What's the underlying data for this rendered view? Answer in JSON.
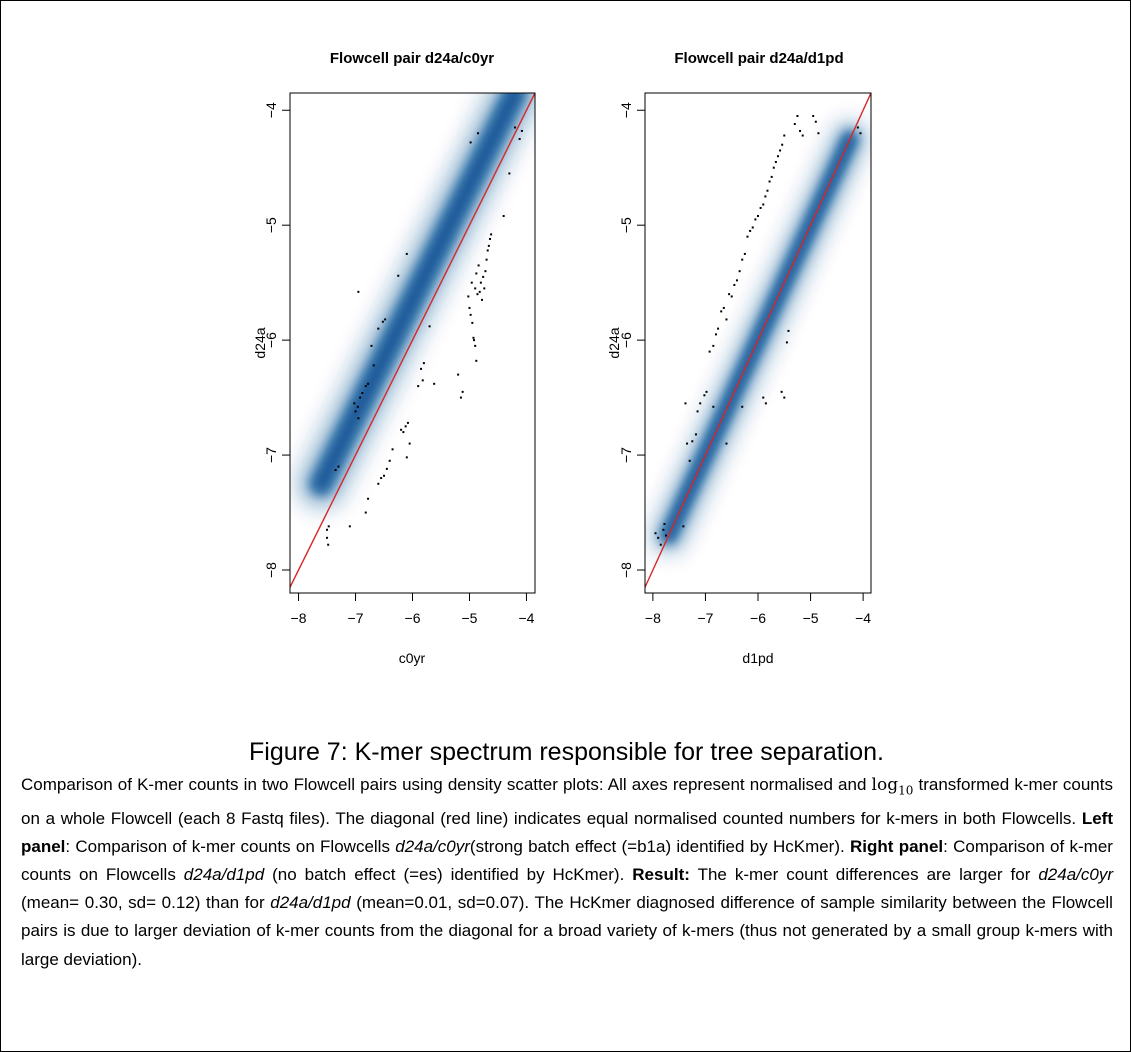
{
  "chart_data": [
    {
      "type": "scatter",
      "title": "Flowcell pair d24a/c0yr",
      "xlabel": "c0yr",
      "ylabel": "d24a",
      "xlim": [
        -8.15,
        -3.85
      ],
      "ylim": [
        -8.2,
        -3.85
      ],
      "x_ticks": [
        -8,
        -7,
        -6,
        -5,
        -4
      ],
      "y_ticks": [
        -8,
        -7,
        -6,
        -5,
        -4
      ],
      "density": {
        "color": "#0b4f94",
        "center_offset": 0.35,
        "spread": 0.22,
        "from": -7.6,
        "to": -4.2
      },
      "diagonal": {
        "color": "#d62728",
        "slope": 1,
        "intercept": 0
      },
      "points": [
        [
          -7.5,
          -7.65
        ],
        [
          -7.5,
          -7.72
        ],
        [
          -7.48,
          -7.78
        ],
        [
          -7.47,
          -7.62
        ],
        [
          -7.35,
          -7.13
        ],
        [
          -7.3,
          -7.1
        ],
        [
          -7.1,
          -7.62
        ],
        [
          -7.02,
          -6.55
        ],
        [
          -7.0,
          -6.62
        ],
        [
          -6.96,
          -6.58
        ],
        [
          -6.92,
          -6.5
        ],
        [
          -6.88,
          -6.46
        ],
        [
          -6.95,
          -6.68
        ],
        [
          -6.82,
          -6.4
        ],
        [
          -6.78,
          -6.38
        ],
        [
          -6.95,
          -5.58
        ],
        [
          -6.72,
          -6.05
        ],
        [
          -6.68,
          -6.22
        ],
        [
          -6.6,
          -5.9
        ],
        [
          -6.52,
          -5.84
        ],
        [
          -6.48,
          -5.82
        ],
        [
          -6.82,
          -7.5
        ],
        [
          -6.78,
          -7.38
        ],
        [
          -6.6,
          -7.25
        ],
        [
          -6.55,
          -7.2
        ],
        [
          -6.5,
          -7.18
        ],
        [
          -6.45,
          -7.12
        ],
        [
          -6.4,
          -7.05
        ],
        [
          -6.35,
          -6.95
        ],
        [
          -6.25,
          -5.44
        ],
        [
          -6.1,
          -5.25
        ],
        [
          -6.2,
          -6.78
        ],
        [
          -6.16,
          -6.8
        ],
        [
          -6.12,
          -6.75
        ],
        [
          -6.08,
          -6.72
        ],
        [
          -6.1,
          -7.02
        ],
        [
          -6.05,
          -6.9
        ],
        [
          -5.9,
          -6.4
        ],
        [
          -5.85,
          -6.25
        ],
        [
          -5.8,
          -6.2
        ],
        [
          -5.82,
          -6.35
        ],
        [
          -5.7,
          -5.88
        ],
        [
          -5.62,
          -6.38
        ],
        [
          -5.2,
          -6.3
        ],
        [
          -5.15,
          -6.5
        ],
        [
          -5.12,
          -6.45
        ],
        [
          -5.02,
          -5.62
        ],
        [
          -5.0,
          -5.72
        ],
        [
          -4.98,
          -5.78
        ],
        [
          -4.96,
          -5.5
        ],
        [
          -4.95,
          -5.85
        ],
        [
          -4.93,
          -5.98
        ],
        [
          -4.9,
          -5.55
        ],
        [
          -4.88,
          -5.42
        ],
        [
          -4.86,
          -5.6
        ],
        [
          -4.84,
          -5.35
        ],
        [
          -4.82,
          -5.58
        ],
        [
          -4.8,
          -5.5
        ],
        [
          -4.78,
          -5.65
        ],
        [
          -4.76,
          -5.45
        ],
        [
          -4.74,
          -5.55
        ],
        [
          -4.72,
          -5.4
        ],
        [
          -4.7,
          -5.3
        ],
        [
          -4.68,
          -5.22
        ],
        [
          -4.66,
          -5.18
        ],
        [
          -4.64,
          -5.12
        ],
        [
          -4.62,
          -5.08
        ],
        [
          -4.92,
          -6.0
        ],
        [
          -4.9,
          -6.05
        ],
        [
          -4.88,
          -6.18
        ],
        [
          -4.85,
          -4.2
        ],
        [
          -4.98,
          -4.28
        ],
        [
          -4.4,
          -4.92
        ],
        [
          -4.3,
          -4.55
        ],
        [
          -4.2,
          -4.15
        ],
        [
          -4.12,
          -4.25
        ],
        [
          -4.08,
          -4.18
        ]
      ]
    },
    {
      "type": "scatter",
      "title": "Flowcell pair d24a/d1pd",
      "xlabel": "d1pd",
      "ylabel": "d24a",
      "xlim": [
        -8.15,
        -3.85
      ],
      "ylim": [
        -8.2,
        -3.85
      ],
      "x_ticks": [
        -8,
        -7,
        -6,
        -5,
        -4
      ],
      "y_ticks": [
        -8,
        -7,
        -6,
        -5,
        -4
      ],
      "density": {
        "color": "#0b4f94",
        "center_offset": 0.0,
        "spread": 0.16,
        "from": -7.7,
        "to": -4.25
      },
      "diagonal": {
        "color": "#d62728",
        "slope": 1,
        "intercept": 0
      },
      "points": [
        [
          -7.95,
          -7.68
        ],
        [
          -7.9,
          -7.72
        ],
        [
          -7.85,
          -7.78
        ],
        [
          -7.8,
          -7.65
        ],
        [
          -7.78,
          -7.6
        ],
        [
          -7.75,
          -7.7
        ],
        [
          -7.42,
          -7.62
        ],
        [
          -7.38,
          -6.55
        ],
        [
          -7.35,
          -6.9
        ],
        [
          -7.3,
          -7.05
        ],
        [
          -7.25,
          -6.88
        ],
        [
          -7.18,
          -6.82
        ],
        [
          -7.15,
          -6.62
        ],
        [
          -7.1,
          -6.55
        ],
        [
          -7.02,
          -6.48
        ],
        [
          -6.98,
          -6.45
        ],
        [
          -6.92,
          -6.1
        ],
        [
          -6.85,
          -6.05
        ],
        [
          -6.8,
          -5.95
        ],
        [
          -6.76,
          -5.9
        ],
        [
          -6.7,
          -5.75
        ],
        [
          -6.65,
          -5.72
        ],
        [
          -6.6,
          -5.82
        ],
        [
          -6.55,
          -5.6
        ],
        [
          -6.5,
          -5.62
        ],
        [
          -6.45,
          -5.52
        ],
        [
          -6.4,
          -5.48
        ],
        [
          -6.35,
          -5.4
        ],
        [
          -6.3,
          -5.3
        ],
        [
          -6.25,
          -5.25
        ],
        [
          -6.2,
          -5.1
        ],
        [
          -6.15,
          -5.05
        ],
        [
          -6.1,
          -5.02
        ],
        [
          -6.05,
          -4.95
        ],
        [
          -6.0,
          -4.92
        ],
        [
          -5.95,
          -4.85
        ],
        [
          -5.9,
          -4.82
        ],
        [
          -5.86,
          -4.75
        ],
        [
          -5.82,
          -4.7
        ],
        [
          -5.78,
          -4.62
        ],
        [
          -5.74,
          -4.58
        ],
        [
          -5.7,
          -4.5
        ],
        [
          -5.66,
          -4.45
        ],
        [
          -5.62,
          -4.4
        ],
        [
          -5.58,
          -4.35
        ],
        [
          -5.54,
          -4.3
        ],
        [
          -5.5,
          -4.22
        ],
        [
          -5.3,
          -4.12
        ],
        [
          -5.25,
          -4.05
        ],
        [
          -5.2,
          -4.18
        ],
        [
          -5.15,
          -4.22
        ],
        [
          -4.95,
          -4.05
        ],
        [
          -4.9,
          -4.1
        ],
        [
          -4.85,
          -4.2
        ],
        [
          -4.1,
          -4.15
        ],
        [
          -4.05,
          -4.2
        ],
        [
          -5.9,
          -6.5
        ],
        [
          -5.85,
          -6.55
        ],
        [
          -5.55,
          -6.45
        ],
        [
          -5.5,
          -6.5
        ],
        [
          -5.45,
          -6.02
        ],
        [
          -5.42,
          -5.92
        ],
        [
          -6.3,
          -6.58
        ],
        [
          -6.85,
          -6.58
        ],
        [
          -6.6,
          -6.9
        ]
      ]
    }
  ],
  "caption": {
    "title": "Figure 7: K-mer spectrum responsible for tree separation.",
    "p1": "Comparison of K-mer counts in two Flowcell pairs using density scatter plots: All axes represent normalised and",
    "math_log": "log",
    "math_base": "10",
    "p2": "transformed k-mer counts on a whole Flowcell (each 8 Fastq files). The diagonal (red line) indicates equal normalised counted numbers for k-mers in both Flowcells.",
    "left_label": "Left panel",
    "left_text_a": ": Comparison of k-mer counts on Flowcells",
    "left_pair": "d24a/c0yr",
    "left_text_b": "(strong batch effect (=b1a) identified by HcKmer).",
    "right_label": "Right panel",
    "right_text_a": ": Comparison of k-mer counts on Flowcells",
    "right_pair": "d24a/d1pd",
    "right_text_b": "(no batch effect (=es) identified by HcKmer).",
    "result_label": "Result:",
    "result_text_a": "The k-mer count differences are larger for",
    "result_pair_a": "d24a/c0yr",
    "result_text_b": "(mean= 0.30, sd= 0.12) than for",
    "result_pair_b": "d24a/d1pd",
    "result_text_c": "(mean=0.01, sd=0.07). The HcKmer diagnosed difference of sample similarity between the Flowcell pairs is due to larger deviation of k-mer counts from the diagonal for a broad variety of k-mers (thus not generated by a small group k-mers with large deviation)."
  }
}
